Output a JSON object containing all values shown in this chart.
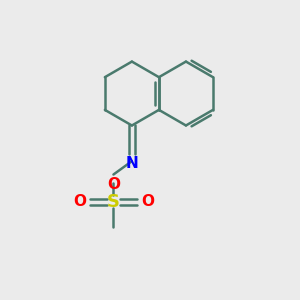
{
  "background_color": "#ebebeb",
  "bond_color": "#4a7a6d",
  "N_color": "#0000ff",
  "O_color": "#ff0000",
  "S_color": "#cccc00",
  "bond_width": 1.8,
  "figsize": [
    3.0,
    3.0
  ],
  "dpi": 100,
  "xlim": [
    0,
    10
  ],
  "ylim": [
    0,
    10
  ]
}
